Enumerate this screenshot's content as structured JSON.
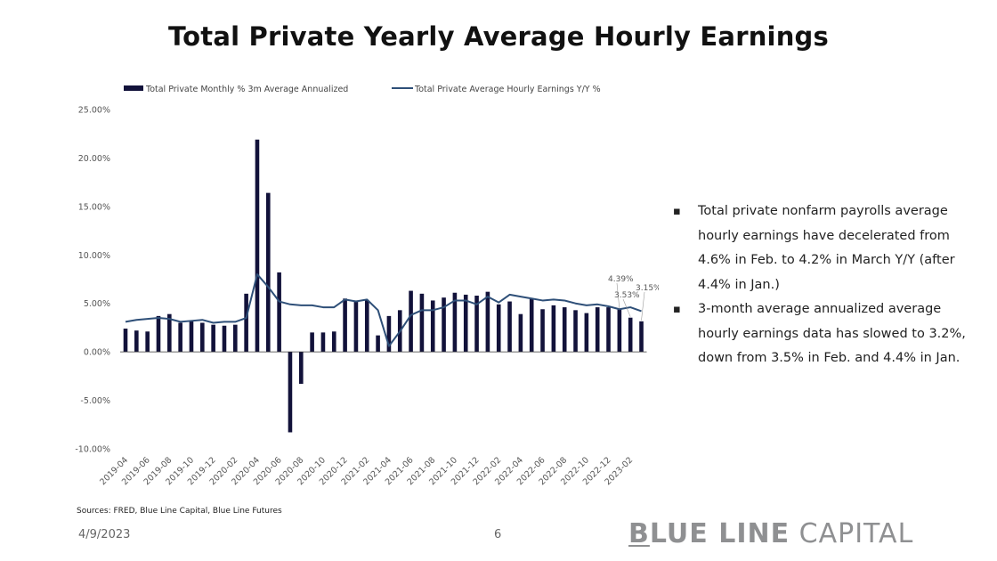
{
  "title": "Total Private Yearly Average Hourly Earnings",
  "bullets": [
    "Total private nonfarm payrolls average hourly earnings have decelerated from 4.6% in Feb. to 4.2% in March Y/Y (after 4.4% in Jan.)",
    "3-month average annualized average hourly earnings data has slowed to 3.2%, down from 3.5% in Feb. and 4.4% in Jan."
  ],
  "sources": "Sources: FRED, Blue Line Capital, Blue Line Futures",
  "date": "4/9/2023",
  "page_number": "6",
  "logo": {
    "first": "B",
    "bold_rest": "LUE LINE",
    "light": " CAPITAL"
  },
  "colors": {
    "bars": "#12123a",
    "line": "#2e4f78",
    "text": "#222222",
    "logo": "#8f9092"
  },
  "chart_data": {
    "type": "bar+line",
    "x": [
      "2019-04",
      "2019-05",
      "2019-06",
      "2019-07",
      "2019-08",
      "2019-09",
      "2019-10",
      "2019-11",
      "2019-12",
      "2020-01",
      "2020-02",
      "2020-03",
      "2020-04",
      "2020-05",
      "2020-06",
      "2020-07",
      "2020-08",
      "2020-09",
      "2020-10",
      "2020-11",
      "2020-12",
      "2021-01",
      "2021-02",
      "2021-03",
      "2021-04",
      "2021-05",
      "2021-06",
      "2021-07",
      "2021-08",
      "2021-09",
      "2021-10",
      "2021-11",
      "2021-12",
      "2022-01",
      "2022-02",
      "2022-03",
      "2022-04",
      "2022-05",
      "2022-06",
      "2022-07",
      "2022-08",
      "2022-09",
      "2022-10",
      "2022-11",
      "2022-12",
      "2023-01",
      "2023-02",
      "2023-03"
    ],
    "tick_labels": [
      "2019-04",
      "2019-06",
      "2019-08",
      "2019-10",
      "2019-12",
      "2020-02",
      "2020-04",
      "2020-06",
      "2020-08",
      "2020-10",
      "2020-12",
      "2021-02",
      "2021-04",
      "2021-06",
      "2021-08",
      "2021-10",
      "2021-12",
      "2022-02",
      "2022-04",
      "2022-06",
      "2022-08",
      "2022-10",
      "2022-12",
      "2023-02"
    ],
    "series": [
      {
        "name": "Total Private Monthly % 3m Average Annualized",
        "kind": "bar",
        "values": [
          2.4,
          2.2,
          2.1,
          3.7,
          3.9,
          3.0,
          3.2,
          3.0,
          2.8,
          2.7,
          2.8,
          6.0,
          21.9,
          16.4,
          8.2,
          -8.3,
          -3.3,
          2.0,
          2.0,
          2.1,
          5.5,
          5.3,
          5.3,
          1.7,
          3.7,
          4.3,
          6.3,
          6.0,
          5.3,
          5.6,
          6.1,
          5.9,
          5.8,
          6.2,
          4.9,
          5.2,
          3.9,
          5.5,
          4.4,
          4.8,
          4.6,
          4.3,
          4.0,
          4.6,
          4.6,
          4.39,
          3.53,
          3.15
        ]
      },
      {
        "name": "Total Private Average Hourly Earnings Y/Y %",
        "kind": "line",
        "values": [
          3.1,
          3.3,
          3.4,
          3.5,
          3.4,
          3.1,
          3.2,
          3.3,
          3.0,
          3.1,
          3.1,
          3.5,
          8.0,
          6.7,
          5.2,
          4.9,
          4.8,
          4.8,
          4.6,
          4.6,
          5.4,
          5.2,
          5.4,
          4.3,
          0.6,
          2.1,
          3.8,
          4.3,
          4.3,
          4.6,
          5.3,
          5.3,
          4.9,
          5.7,
          5.1,
          5.9,
          5.7,
          5.5,
          5.3,
          5.4,
          5.3,
          5.0,
          4.8,
          4.9,
          4.7,
          4.4,
          4.6,
          4.2
        ]
      }
    ],
    "annotations": [
      "4.39%",
      "3.53%",
      "3.15%"
    ],
    "ylim": [
      -10,
      25
    ],
    "yticks": [
      "25.00%",
      "20.00%",
      "15.00%",
      "10.00%",
      "5.00%",
      "0.00%",
      "-5.00%",
      "-10.00%"
    ],
    "legend": "top",
    "grid": false
  }
}
